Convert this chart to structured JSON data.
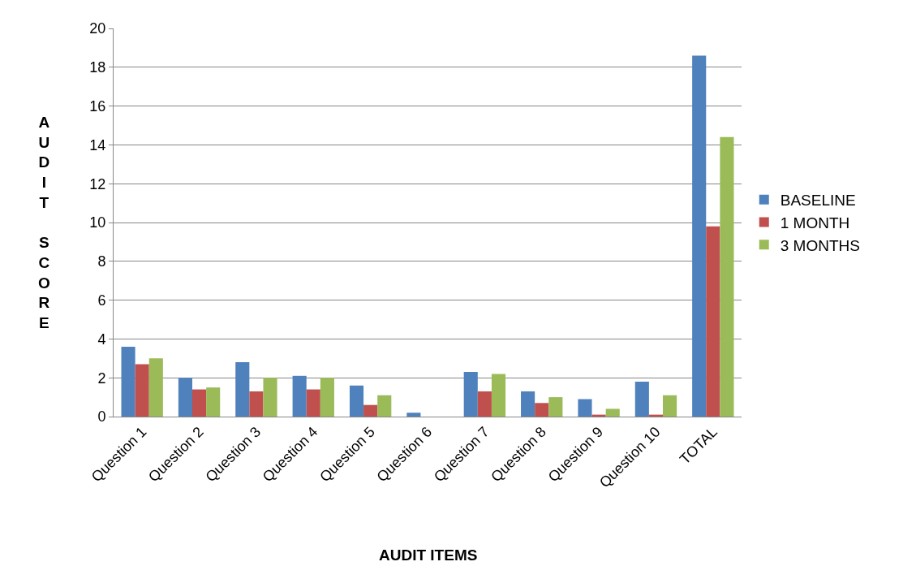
{
  "chart_data": {
    "type": "bar",
    "xlabel": "AUDIT ITEMS",
    "ylabel": "AUDIT SCORE",
    "categories": [
      "Question 1",
      "Question 2",
      "Question 3",
      "Question 4",
      "Question 5",
      "Question 6",
      "Question 7",
      "Question 8",
      "Question 9",
      "Question 10",
      "TOTAL"
    ],
    "series": [
      {
        "name": "BASELINE",
        "color": "#4f81bd",
        "values": [
          3.6,
          2.0,
          2.8,
          2.1,
          1.6,
          0.2,
          2.3,
          1.3,
          0.9,
          1.8,
          18.6
        ]
      },
      {
        "name": "1 MONTH",
        "color": "#c0504d",
        "values": [
          2.7,
          1.4,
          1.3,
          1.4,
          0.6,
          0,
          1.3,
          0.7,
          0.1,
          0.1,
          9.8
        ]
      },
      {
        "name": "3 MONTHS",
        "color": "#9bbb59",
        "values": [
          3.0,
          1.5,
          2.0,
          2.0,
          1.1,
          0,
          2.2,
          1.0,
          0.4,
          1.1,
          14.4
        ]
      }
    ],
    "ylim": [
      0,
      20
    ],
    "yticks": [
      0,
      2,
      4,
      6,
      8,
      10,
      12,
      14,
      16,
      18,
      20
    ],
    "grid": "y",
    "legend": "right"
  }
}
